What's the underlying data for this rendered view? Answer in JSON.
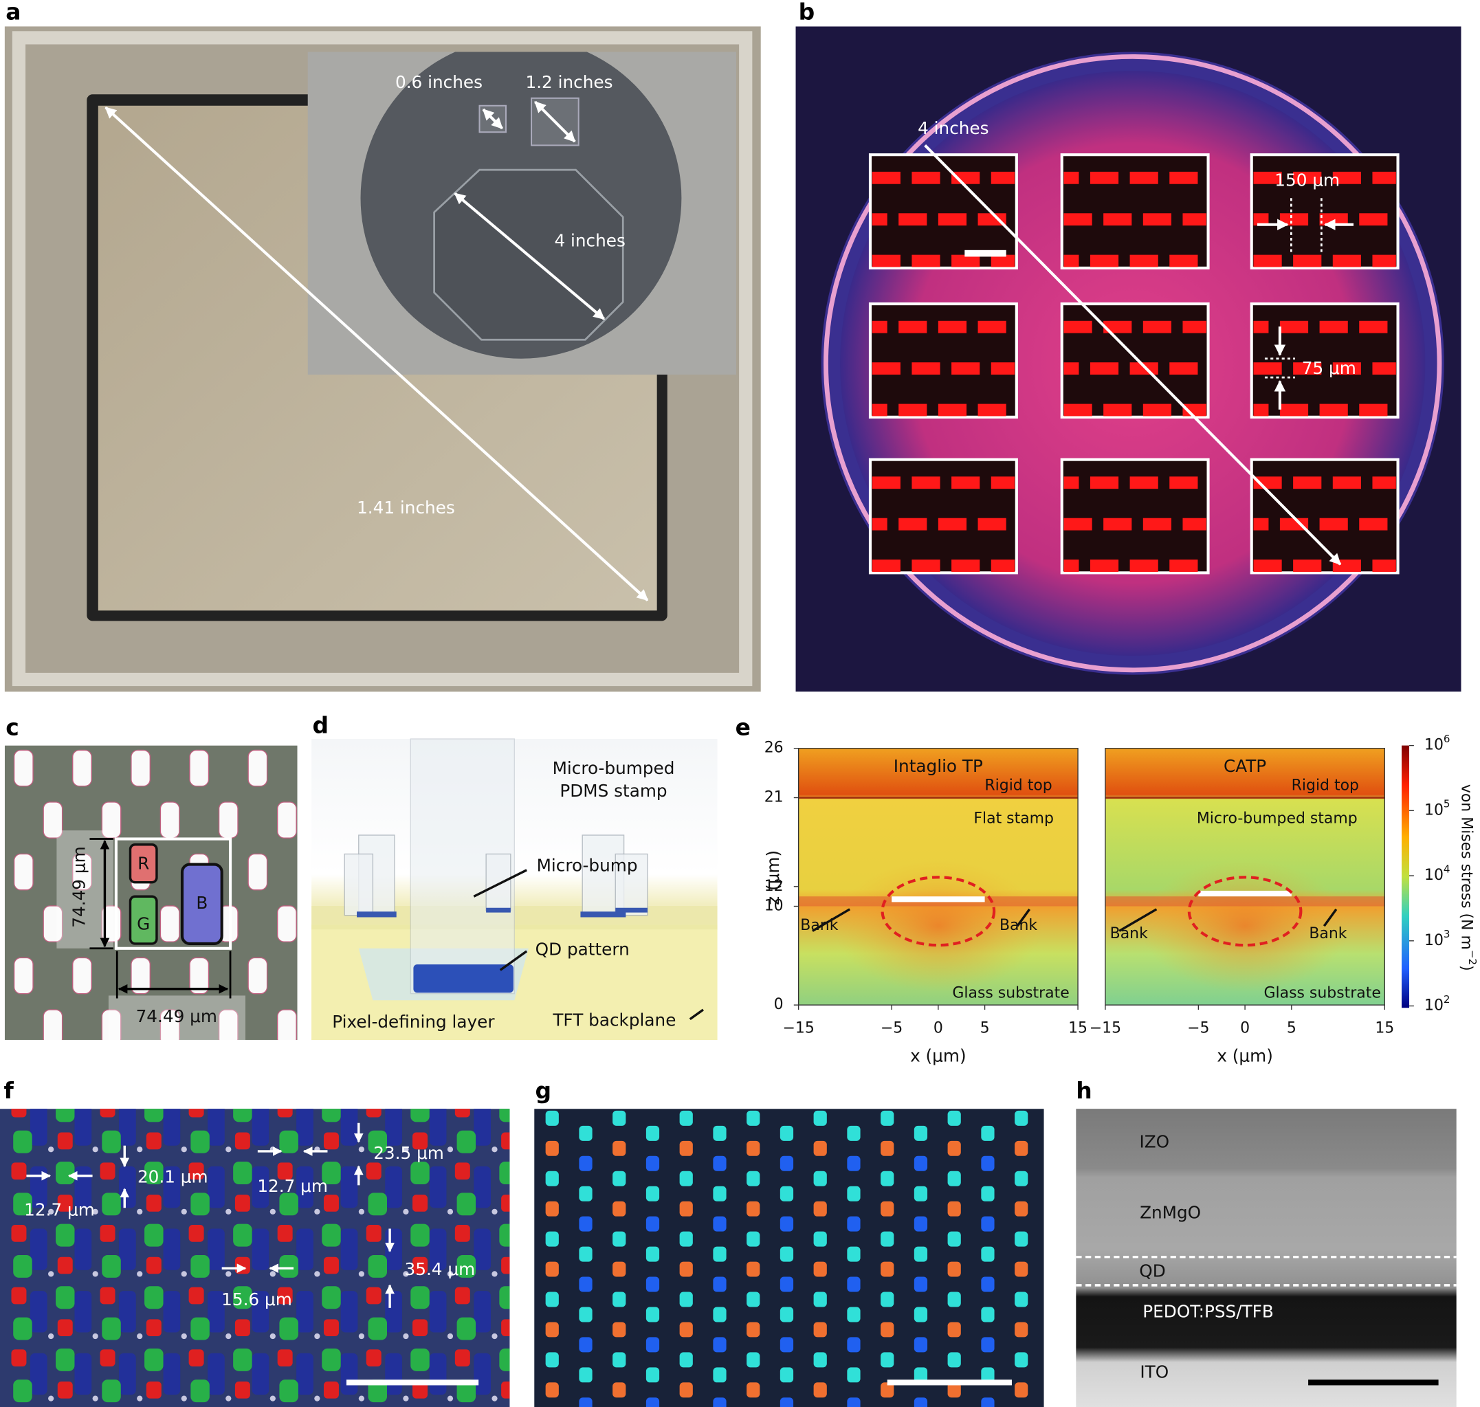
{
  "panels": {
    "a": {
      "letter": "a",
      "labels": [
        "0.6 inches",
        "1.2 inches",
        "4 inches",
        "1.41 inches"
      ]
    },
    "b": {
      "letter": "b",
      "labels": [
        "4 inches",
        "150 μm",
        "75 μm"
      ]
    },
    "c": {
      "letter": "c",
      "labels": [
        "R",
        "G",
        "B",
        "74.49 μm",
        "74.49 μm"
      ]
    },
    "d": {
      "letter": "d",
      "labels": [
        "Micro-bumped",
        "PDMS stamp",
        "Micro-bump",
        "QD pattern",
        "Pixel-defining layer",
        "TFT backplane"
      ]
    },
    "e": {
      "letter": "e",
      "zlabel": "z (μm)",
      "zlim": [
        0,
        26
      ],
      "zticks": [
        0,
        10,
        12,
        21,
        26
      ],
      "plots": [
        {
          "title": "Intaglio TP",
          "labels": [
            "Rigid top",
            "Flat stamp",
            "Bank",
            "Bank",
            "Glass substrate"
          ],
          "xlabel": "x (μm)",
          "xlim": [
            -15,
            15
          ],
          "xticks": [
            {
              "value": -15,
              "label": "−15"
            },
            {
              "value": -5,
              "label": "−5"
            },
            0,
            5,
            15
          ]
        },
        {
          "title": "CATP",
          "labels": [
            "Rigid top",
            "Micro-bumped stamp",
            "Bank",
            "Bank",
            "Glass substrate"
          ],
          "xlabel": "x (μm)",
          "xlim": [
            -15,
            15
          ],
          "xticks": [
            {
              "value": -15,
              "label": "−15"
            },
            {
              "value": -5,
              "label": "−5"
            },
            0,
            5,
            15
          ]
        }
      ],
      "colorbar": {
        "label": "von Mises stress (N m",
        "label_exponent": "−2",
        "label_end": ")",
        "ticks": [
          {
            "base": "10",
            "exponent": "6"
          },
          {
            "base": "10",
            "exponent": "5"
          },
          {
            "base": "10",
            "exponent": "4"
          },
          {
            "base": "10",
            "exponent": "3"
          },
          {
            "base": "10",
            "exponent": "2"
          }
        ]
      }
    },
    "f": {
      "letter": "f",
      "labels": [
        "12.7 μm",
        "20.1 μm",
        "12.7 μm",
        "23.5 μm",
        "35.4 μm",
        "15.6 μm"
      ]
    },
    "g": {
      "letter": "g"
    },
    "h": {
      "letter": "h",
      "labels": [
        "IZO",
        "ZnMgO",
        "QD",
        "PEDOT:PSS/TFB",
        "ITO"
      ]
    }
  }
}
